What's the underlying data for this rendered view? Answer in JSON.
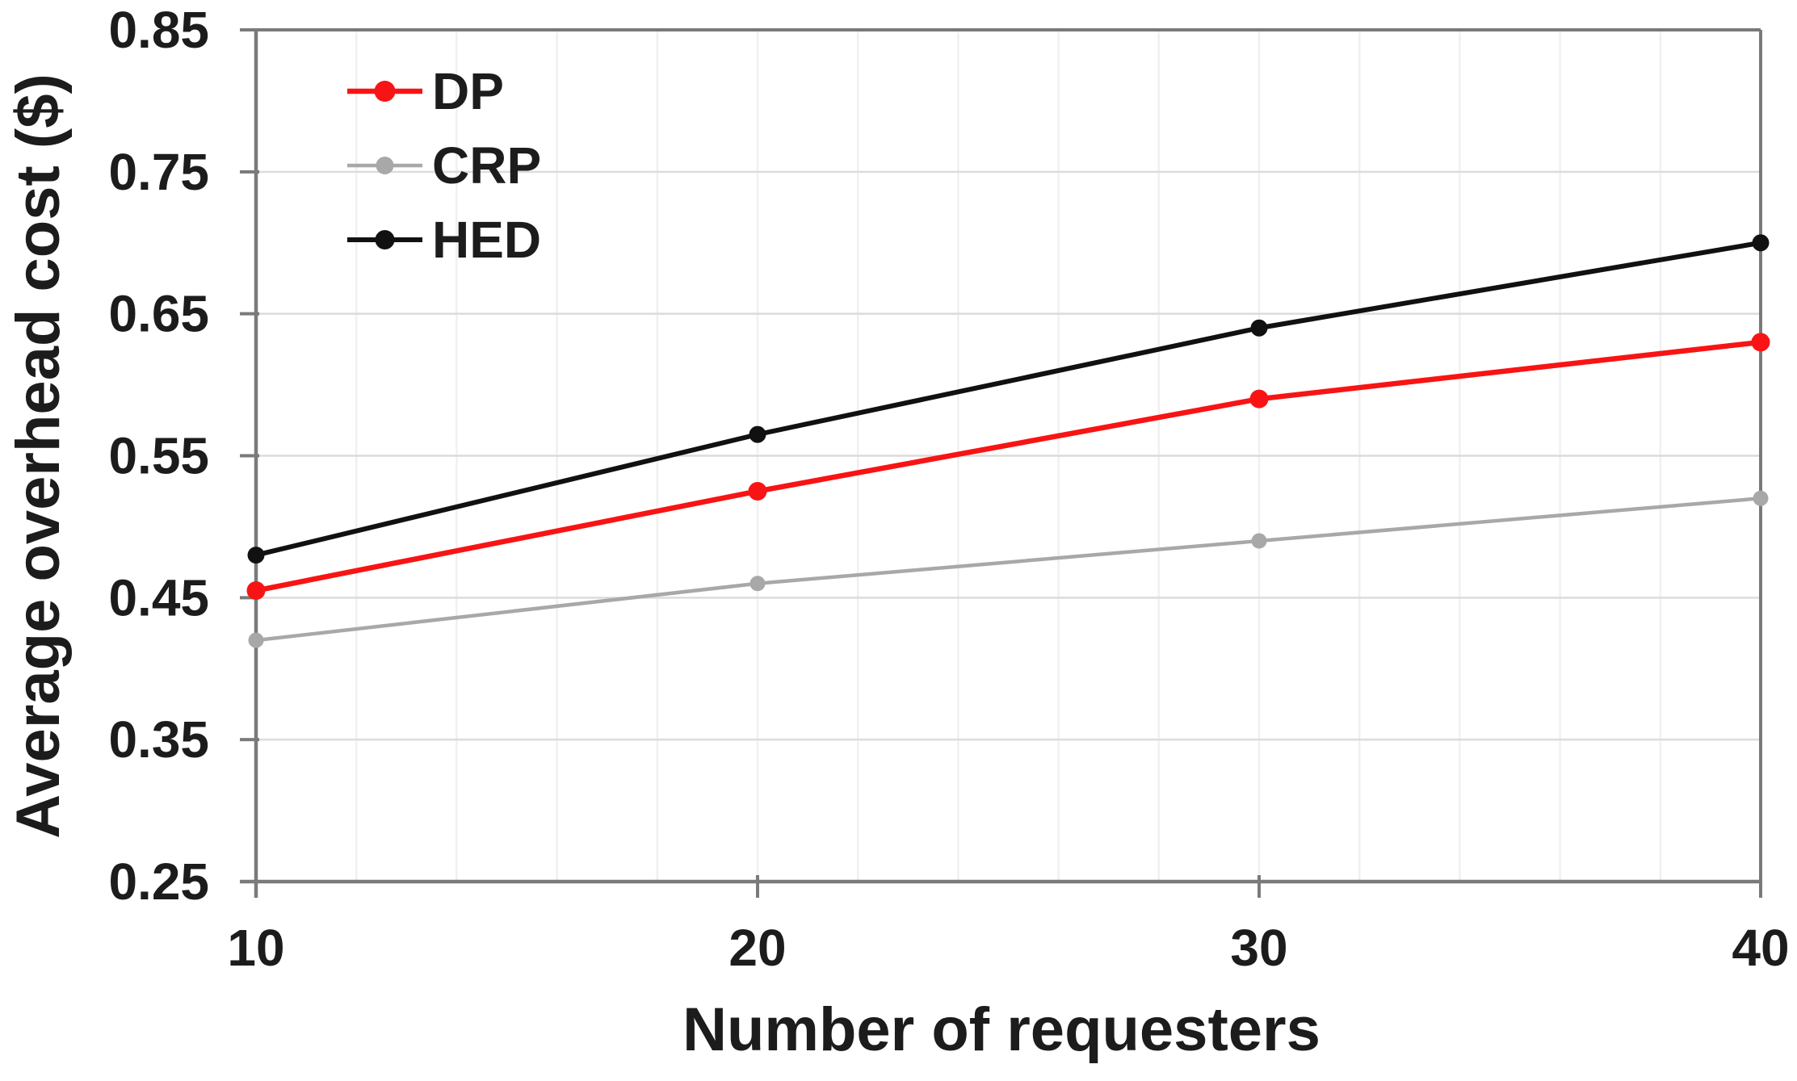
{
  "chart_data": {
    "type": "line",
    "title": "",
    "xlabel": "Number of requesters",
    "ylabel": "Average overhead cost ($)",
    "categories": [
      10,
      20,
      30,
      40
    ],
    "series": [
      {
        "name": "DP",
        "color": "#f81414",
        "values": [
          0.455,
          0.525,
          0.59,
          0.63
        ],
        "line_width": 6.5,
        "marker_radius": 11.5
      },
      {
        "name": "CRP",
        "color": "#a8a8a8",
        "values": [
          0.42,
          0.46,
          0.49,
          0.52
        ],
        "line_width": 4.5,
        "marker_radius": 9.5
      },
      {
        "name": "HED",
        "color": "#111111",
        "values": [
          0.48,
          0.565,
          0.64,
          0.7
        ],
        "line_width": 6,
        "marker_radius": 10.5
      }
    ],
    "xlim": [
      10,
      40
    ],
    "ylim": [
      0.25,
      0.85
    ],
    "xticks": [
      "10",
      "20",
      "30",
      "40"
    ],
    "yticks": [
      "0.25",
      "0.35",
      "0.45",
      "0.55",
      "0.65",
      "0.75",
      "0.85"
    ],
    "grid": {
      "horizontal_interval": 0.1,
      "vertical_interval": 2,
      "horizontal": "on",
      "vertical": "minor"
    },
    "legend": {
      "position": "top-left-inside",
      "entries": [
        "DP",
        "CRP",
        "HED"
      ]
    }
  },
  "colors": {
    "axis": "#7a7a7a",
    "grid_horizontal": "#dcdcdc",
    "grid_vertical": "#f0f0f0",
    "text": "#1c1c1c",
    "background": "#ffffff"
  }
}
